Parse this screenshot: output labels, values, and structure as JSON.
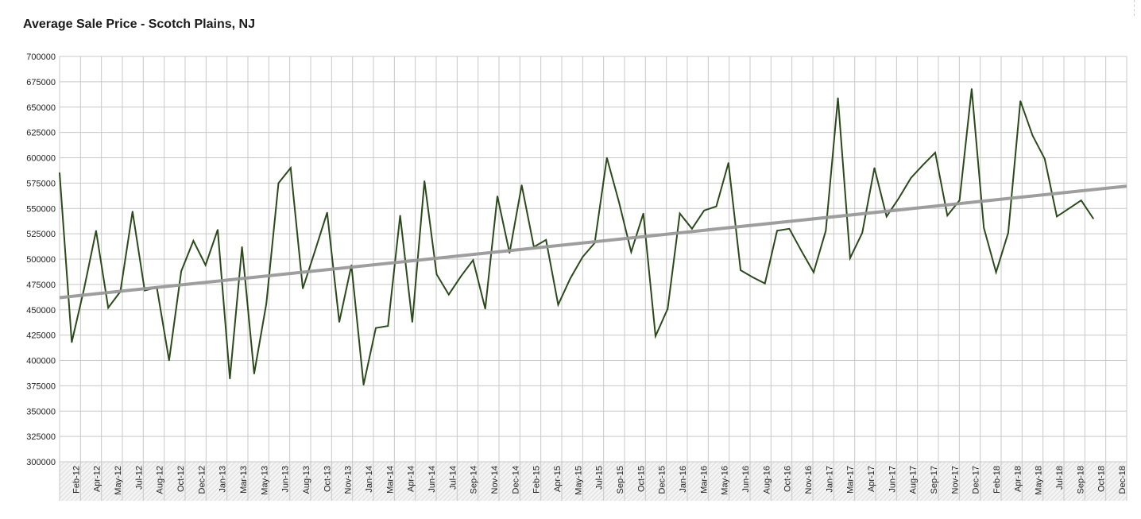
{
  "chart_data": {
    "type": "line",
    "title": "Average Sale Price - Scotch Plains, NJ",
    "xlabel": "",
    "ylabel": "",
    "ylim": [
      300000,
      700000
    ],
    "y_ticks": [
      "300000",
      "325000",
      "350000",
      "375000",
      "400000",
      "425000",
      "450000",
      "475000",
      "500000",
      "525000",
      "550000",
      "575000",
      "600000",
      "625000",
      "650000",
      "675000",
      "700000"
    ],
    "x_ticks": [
      "Feb-12",
      "Apr-12",
      "May-12",
      "Jul-12",
      "Aug-12",
      "Oct-12",
      "Dec-12",
      "Jan-13",
      "Mar-13",
      "May-13",
      "Jun-13",
      "Aug-13",
      "Oct-13",
      "Nov-13",
      "Jan-14",
      "Mar-14",
      "Apr-14",
      "Jun-14",
      "Jul-14",
      "Sep-14",
      "Nov-14",
      "Dec-14",
      "Feb-15",
      "Apr-15",
      "May-15",
      "Jul-15",
      "Sep-15",
      "Oct-15",
      "Dec-15",
      "Jan-16",
      "Mar-16",
      "May-16",
      "Jun-16",
      "Aug-16",
      "Oct-16",
      "Nov-16",
      "Jan-17",
      "Mar-17",
      "Apr-17",
      "Jun-17",
      "Aug-17",
      "Sep-17",
      "Nov-17",
      "Dec-17",
      "Feb-18",
      "Apr-18",
      "May-18",
      "Jul-18",
      "Sep-18",
      "Oct-18",
      "Dec-18"
    ],
    "grid": true,
    "legend": "none",
    "series": [
      {
        "color": "#2a4a1a",
        "values": [
          585000,
          418000,
          470000,
          528000,
          452000,
          468000,
          547000,
          469000,
          472000,
          400000,
          488000,
          518000,
          494000,
          529000,
          382000,
          512000,
          387000,
          456000,
          575000,
          590000,
          471000,
          508000,
          546000,
          438000,
          494000,
          376000,
          432000,
          434000,
          543000,
          438000,
          577000,
          485000,
          465000,
          483000,
          499000,
          451000,
          562000,
          506000,
          573000,
          512000,
          519000,
          455000,
          481000,
          502000,
          516000,
          600000,
          556000,
          507000,
          545000,
          424000,
          451000,
          545000,
          530000,
          548000,
          552000,
          595000,
          489000,
          482000,
          476000,
          528000,
          530000,
          508000,
          487000,
          528000,
          659000,
          501000,
          526000,
          590000,
          542000,
          560000,
          580000,
          593000,
          605000,
          543000,
          558000,
          668000,
          531000,
          487000,
          526000,
          656000,
          622000,
          599000,
          542000,
          550000,
          558000,
          540000
        ]
      },
      {
        "color": "#999999",
        "values": [
          462000,
          572000
        ],
        "trendline": true
      }
    ]
  }
}
